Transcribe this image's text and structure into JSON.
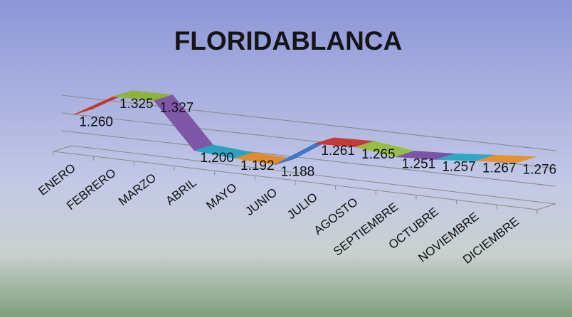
{
  "chart_data": {
    "type": "line",
    "title": "FLORIDABLANCA",
    "categories": [
      "ENERO",
      "FEBRERO",
      "MARZO",
      "ABRIL",
      "MAYO",
      "JUNIO",
      "JULIO",
      "AGOSTO",
      "SEPTIEMBRE",
      "OCTUBRE",
      "NOVIEMBRE",
      "DICIEMBRE"
    ],
    "values": [
      1.26,
      1.325,
      1.327,
      1.2,
      1.192,
      1.188,
      1.261,
      1.265,
      1.251,
      1.257,
      1.267,
      1.276
    ],
    "value_labels": [
      "1.260",
      "1.325",
      "1.327",
      "1.200",
      "1.192",
      "1.188",
      "1.261",
      "1.265",
      "1.251",
      "1.257",
      "1.267",
      "1.276"
    ],
    "segment_colors": [
      "#c0392b",
      "#8fb33a",
      "#7e57a6",
      "#2aa3c2",
      "#e08a2e",
      "#3f78c3",
      "#c23b36",
      "#97bd45",
      "#7b54a6",
      "#2ba9c6",
      "#e7902f"
    ],
    "colors": {
      "background_top": "#8d96d8",
      "background_mid": "#c3c9e6",
      "background_bottom": "#7f9e7b",
      "grid": "#8a8a8a"
    },
    "grid": true,
    "style": "3d-ribbon"
  }
}
